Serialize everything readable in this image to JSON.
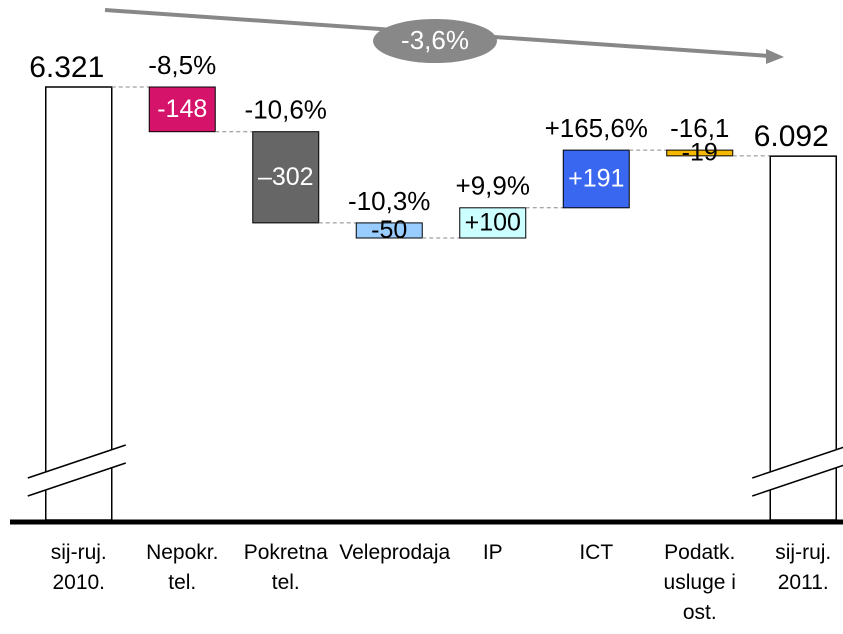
{
  "chart_data": {
    "type": "waterfall",
    "categories": [
      "sij-ruj. 2010.",
      "Nepokr. tel.",
      "Pokretna tel.",
      "Veleprodaja",
      "IP",
      "ICT",
      "Podatk. usluge i ost.",
      "sij-ruj. 2011."
    ],
    "measure": [
      "total",
      "relative",
      "relative",
      "relative",
      "relative",
      "relative",
      "relative",
      "total"
    ],
    "values": [
      6321,
      -148,
      -302,
      -50,
      100,
      191,
      -19,
      6092
    ],
    "value_labels": [
      "6.321",
      "-148",
      "–302",
      "-50",
      "+100",
      "+191",
      "-19",
      "6.092"
    ],
    "change_labels": [
      null,
      "-8,5%",
      "-10,6%",
      "-10,3%",
      "+9,9%",
      "+165,6%",
      "-16,1",
      null
    ],
    "colors": [
      "#ffffff",
      "#d6136b",
      "#666666",
      "#99ccff",
      "#ccffff",
      "#3a67f0",
      "#f5b800",
      "#ffffff"
    ],
    "label_colors": [
      "#000000",
      "#ffffff",
      "#ffffff",
      "#000000",
      "#000000",
      "#ffffff",
      "#000000",
      "#000000"
    ],
    "total_change_label": "-3,6%"
  }
}
